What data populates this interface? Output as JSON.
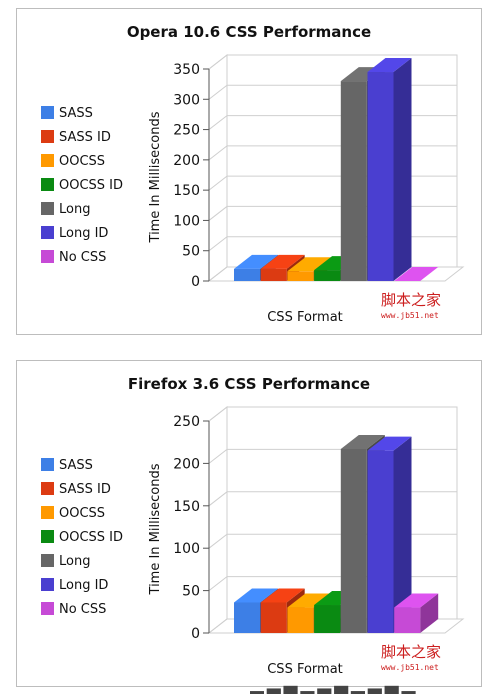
{
  "watermark": {
    "main": "脚本之家",
    "sub": "www.jb51.net"
  },
  "footer_cut": "▂▃▄▂▃▄▂▃▄▂",
  "chart_data": [
    {
      "type": "bar",
      "title": "Opera 10.6 CSS Performance",
      "xlabel": "CSS Format",
      "ylabel": "Time In Milliseconds",
      "ylim": [
        0,
        350
      ],
      "yticks": [
        0,
        50,
        100,
        150,
        200,
        250,
        300,
        350
      ],
      "legend_position": "left",
      "grid": true,
      "series": [
        {
          "name": "SASS",
          "value": 20,
          "color": "#3d7fe6"
        },
        {
          "name": "SASS ID",
          "value": 20,
          "color": "#dc3b12"
        },
        {
          "name": "OOCSS",
          "value": 16,
          "color": "#ff9900"
        },
        {
          "name": "OOCSS ID",
          "value": 18,
          "color": "#0a8a12"
        },
        {
          "name": "Long",
          "value": 330,
          "color": "#666666"
        },
        {
          "name": "Long ID",
          "value": 345,
          "color": "#4a3fd0"
        },
        {
          "name": "No CSS",
          "value": 0,
          "color": "#c64ad6"
        }
      ]
    },
    {
      "type": "bar",
      "title": "Firefox 3.6 CSS Performance",
      "xlabel": "CSS Format",
      "ylabel": "Time In Milliseconds",
      "ylim": [
        0,
        250
      ],
      "yticks": [
        0,
        50,
        100,
        150,
        200,
        250
      ],
      "legend_position": "left",
      "grid": true,
      "series": [
        {
          "name": "SASS",
          "value": 36,
          "color": "#3d7fe6"
        },
        {
          "name": "SASS ID",
          "value": 36,
          "color": "#dc3b12"
        },
        {
          "name": "OOCSS",
          "value": 30,
          "color": "#ff9900"
        },
        {
          "name": "OOCSS ID",
          "value": 33,
          "color": "#0a8a12"
        },
        {
          "name": "Long",
          "value": 217,
          "color": "#666666"
        },
        {
          "name": "Long ID",
          "value": 215,
          "color": "#4a3fd0"
        },
        {
          "name": "No CSS",
          "value": 30,
          "color": "#c64ad6"
        }
      ]
    }
  ]
}
